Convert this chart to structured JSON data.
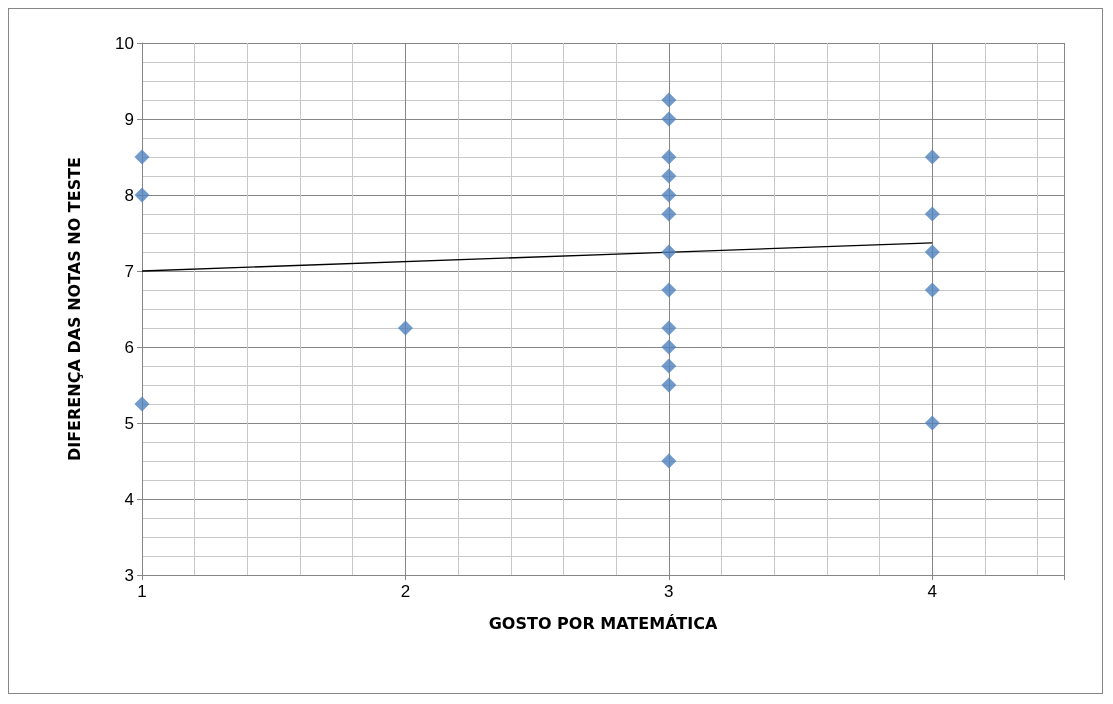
{
  "chart_data": {
    "type": "scatter",
    "xlabel": "GOSTO POR MATEMÁTICA",
    "ylabel": "DIFERENÇA DAS NOTAS NO TESTE",
    "xlim": [
      1,
      4.5
    ],
    "xticks": [
      1,
      2,
      3,
      4
    ],
    "ylim": [
      3,
      10
    ],
    "yticks": [
      3,
      4,
      5,
      6,
      7,
      8,
      9,
      10
    ],
    "grid": true,
    "marker": "diamond",
    "series": [
      {
        "color": "#4f81bd",
        "x": [
          1,
          1,
          1,
          2,
          3,
          3,
          3,
          3,
          3,
          3,
          3,
          3,
          3,
          3,
          3,
          3,
          3,
          4,
          4,
          4,
          4,
          4
        ],
        "values": [
          8.5,
          8,
          5.25,
          6.25,
          9.25,
          9,
          8.5,
          8.25,
          8,
          7.75,
          7.25,
          6.75,
          6.25,
          6,
          5.75,
          5.5,
          4.5,
          8.5,
          7.75,
          7.25,
          6.75,
          5
        ]
      },
      {
        "type": "line",
        "color": "#000000",
        "marker": "none",
        "x": [
          1,
          4
        ],
        "values": [
          7,
          7.37
        ]
      }
    ]
  }
}
